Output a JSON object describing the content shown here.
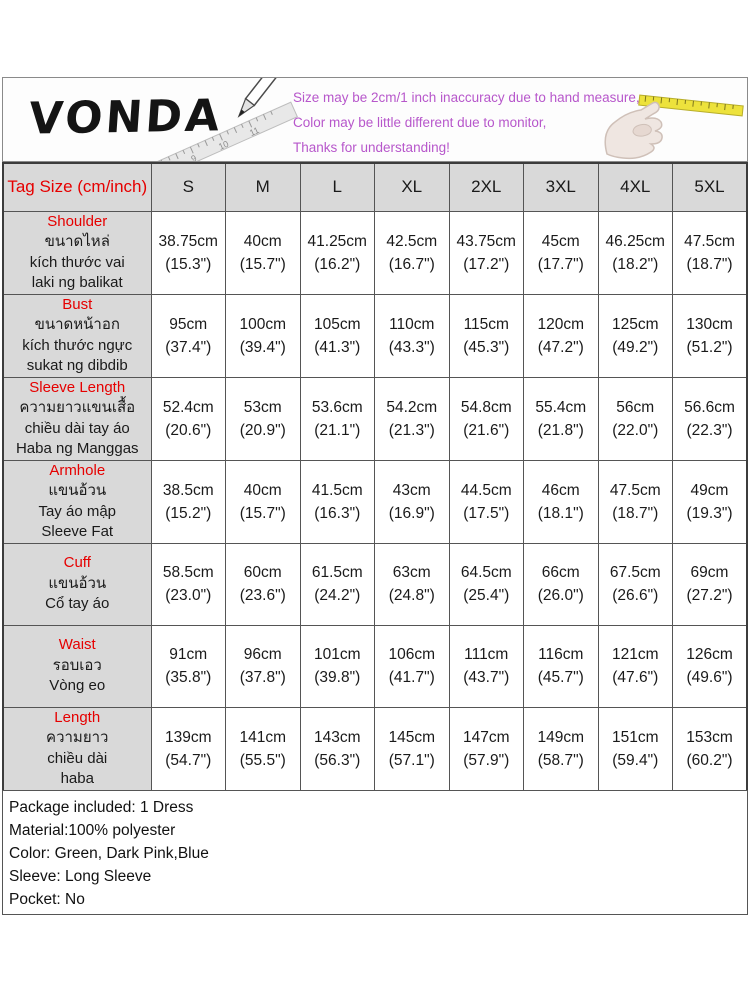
{
  "header": {
    "brand": "VONDA",
    "notes": [
      "Size may be 2cm/1 inch inaccuracy due to hand measure,",
      "Color may be little different due to monitor,",
      "Thanks for understanding!"
    ],
    "pencil_image": "pencil-and-ruler-illustration",
    "tape_image": "hand-holding-tape-measure-illustration"
  },
  "colors": {
    "note_pink": "#b757cb",
    "label_red": "#e60000",
    "cell_gray": "#d9d9d9",
    "tape_yellow": "#ede23c"
  },
  "table": {
    "corner_label": "Tag Size (cm/inch)",
    "sizes": [
      "S",
      "M",
      "L",
      "XL",
      "2XL",
      "3XL",
      "4XL",
      "5XL"
    ],
    "rows": [
      {
        "label": "Shoulder",
        "sublabels": [
          "ขนาดไหล่",
          "kích thước vai",
          "laki ng balikat"
        ],
        "cells": [
          {
            "cm": "38.75cm",
            "inch": "(15.3\")"
          },
          {
            "cm": "40cm",
            "inch": "(15.7\")"
          },
          {
            "cm": "41.25cm",
            "inch": "(16.2\")"
          },
          {
            "cm": "42.5cm",
            "inch": "(16.7\")"
          },
          {
            "cm": "43.75cm",
            "inch": "(17.2\")"
          },
          {
            "cm": "45cm",
            "inch": "(17.7\")"
          },
          {
            "cm": "46.25cm",
            "inch": "(18.2\")"
          },
          {
            "cm": "47.5cm",
            "inch": "(18.7\")"
          }
        ]
      },
      {
        "label": "Bust",
        "sublabels": [
          "ขนาดหน้าอก",
          "kích thước ngực",
          "sukat ng dibdib"
        ],
        "cells": [
          {
            "cm": "95cm",
            "inch": "(37.4\")"
          },
          {
            "cm": "100cm",
            "inch": "(39.4\")"
          },
          {
            "cm": "105cm",
            "inch": "(41.3\")"
          },
          {
            "cm": "110cm",
            "inch": "(43.3\")"
          },
          {
            "cm": "115cm",
            "inch": "(45.3\")"
          },
          {
            "cm": "120cm",
            "inch": "(47.2\")"
          },
          {
            "cm": "125cm",
            "inch": "(49.2\")"
          },
          {
            "cm": "130cm",
            "inch": "(51.2\")"
          }
        ]
      },
      {
        "label": "Sleeve Length",
        "sublabels": [
          "ความยาวแขนเสื้อ",
          "chiều dài tay áo",
          "Haba ng Manggas"
        ],
        "cells": [
          {
            "cm": "52.4cm",
            "inch": "(20.6\")"
          },
          {
            "cm": "53cm",
            "inch": "(20.9\")"
          },
          {
            "cm": "53.6cm",
            "inch": "(21.1\")"
          },
          {
            "cm": "54.2cm",
            "inch": "(21.3\")"
          },
          {
            "cm": "54.8cm",
            "inch": "(21.6\")"
          },
          {
            "cm": "55.4cm",
            "inch": "(21.8\")"
          },
          {
            "cm": "56cm",
            "inch": "(22.0\")"
          },
          {
            "cm": "56.6cm",
            "inch": "(22.3\")"
          }
        ]
      },
      {
        "label": "Armhole",
        "sublabels": [
          "แขนอ้วน",
          "Tay áo mập",
          "Sleeve Fat"
        ],
        "cells": [
          {
            "cm": "38.5cm",
            "inch": "(15.2\")"
          },
          {
            "cm": "40cm",
            "inch": "(15.7\")"
          },
          {
            "cm": "41.5cm",
            "inch": "(16.3\")"
          },
          {
            "cm": "43cm",
            "inch": "(16.9\")"
          },
          {
            "cm": "44.5cm",
            "inch": "(17.5\")"
          },
          {
            "cm": "46cm",
            "inch": "(18.1\")"
          },
          {
            "cm": "47.5cm",
            "inch": "(18.7\")"
          },
          {
            "cm": "49cm",
            "inch": "(19.3\")"
          }
        ]
      },
      {
        "label": "Cuff",
        "sublabels": [
          "แขนอ้วน",
          "Cổ tay áo"
        ],
        "cells": [
          {
            "cm": "58.5cm",
            "inch": "(23.0\")"
          },
          {
            "cm": "60cm",
            "inch": "(23.6\")"
          },
          {
            "cm": "61.5cm",
            "inch": "(24.2\")"
          },
          {
            "cm": "63cm",
            "inch": "(24.8\")"
          },
          {
            "cm": "64.5cm",
            "inch": "(25.4\")"
          },
          {
            "cm": "66cm",
            "inch": "(26.0\")"
          },
          {
            "cm": "67.5cm",
            "inch": "(26.6\")"
          },
          {
            "cm": "69cm",
            "inch": "(27.2\")"
          }
        ]
      },
      {
        "label": "Waist",
        "sublabels": [
          "รอบเอว",
          "Vòng eo"
        ],
        "cells": [
          {
            "cm": "91cm",
            "inch": "(35.8\")"
          },
          {
            "cm": "96cm",
            "inch": "(37.8\")"
          },
          {
            "cm": "101cm",
            "inch": "(39.8\")"
          },
          {
            "cm": "106cm",
            "inch": "(41.7\")"
          },
          {
            "cm": "111cm",
            "inch": "(43.7\")"
          },
          {
            "cm": "116cm",
            "inch": "(45.7\")"
          },
          {
            "cm": "121cm",
            "inch": "(47.6\")"
          },
          {
            "cm": "126cm",
            "inch": "(49.6\")"
          }
        ]
      },
      {
        "label": "Length",
        "sublabels": [
          "ความยาว",
          "chiều dài",
          "haba"
        ],
        "cells": [
          {
            "cm": "139cm",
            "inch": "(54.7\")"
          },
          {
            "cm": "141cm",
            "inch": "(55.5\")"
          },
          {
            "cm": "143cm",
            "inch": "(56.3\")"
          },
          {
            "cm": "145cm",
            "inch": "(57.1\")"
          },
          {
            "cm": "147cm",
            "inch": "(57.9\")"
          },
          {
            "cm": "149cm",
            "inch": "(58.7\")"
          },
          {
            "cm": "151cm",
            "inch": "(59.4\")"
          },
          {
            "cm": "153cm",
            "inch": "(60.2\")"
          }
        ]
      }
    ]
  },
  "footer": {
    "lines": [
      "Package included: 1 Dress",
      "Material:100% polyester",
      "Color: Green, Dark Pink,Blue",
      "Sleeve: Long Sleeve",
      "Pocket: No"
    ]
  }
}
